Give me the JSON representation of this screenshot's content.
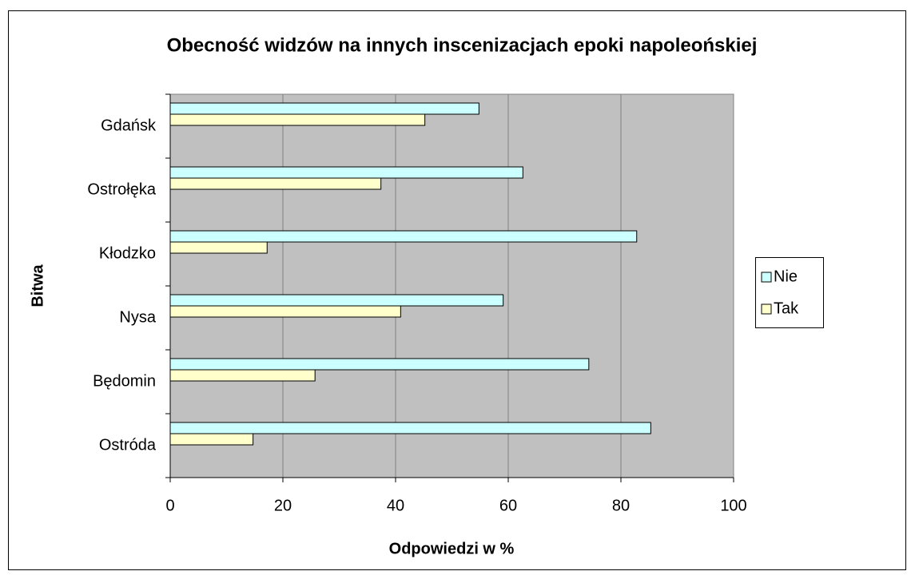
{
  "chart_data": {
    "type": "bar",
    "orientation": "horizontal",
    "title": "Obecność widzów na innych inscenizacjach epoki napoleońskiej",
    "x_label": "Odpowiedzi w %",
    "y_label": "Bitwa",
    "categories": [
      "Gdańsk",
      "Ostrołęka",
      "Kłodzko",
      "Nysa",
      "Będomin",
      "Ostróda"
    ],
    "series": [
      {
        "name": "Nie",
        "color": "#ccffff",
        "values": [
          54.8,
          62.6,
          82.8,
          59.1,
          74.3,
          85.3
        ]
      },
      {
        "name": "Tak",
        "color": "#ffffcc",
        "values": [
          45.2,
          37.4,
          17.2,
          40.9,
          25.7,
          14.7
        ]
      }
    ],
    "xlim": [
      0,
      100
    ],
    "xticks": [
      0,
      20,
      40,
      60,
      80,
      100
    ],
    "grid": true,
    "legend": "right"
  }
}
